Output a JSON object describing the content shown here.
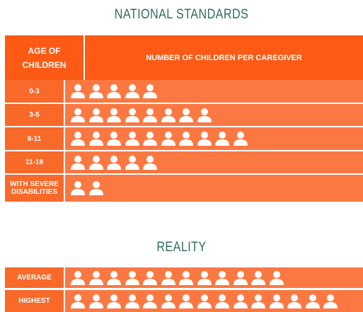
{
  "sections": [
    {
      "title": "NATIONAL STANDARDS",
      "header": [
        "AGE OF CHILDREN",
        "NUMBER OF CHILDREN PER CAREGIVER"
      ],
      "rows": [
        {
          "label": "0-3",
          "count": 5
        },
        {
          "label": "3-5",
          "count": 8
        },
        {
          "label": "6-11",
          "count": 10
        },
        {
          "label": "11-18",
          "count": 5
        },
        {
          "label": "WITH SEVERE DISABILITIES",
          "count": 2
        }
      ]
    },
    {
      "title": "REALITY",
      "rows": [
        {
          "label": "AVERAGE",
          "count": 12
        },
        {
          "label": "HIGHEST",
          "count": 15
        }
      ]
    }
  ]
}
